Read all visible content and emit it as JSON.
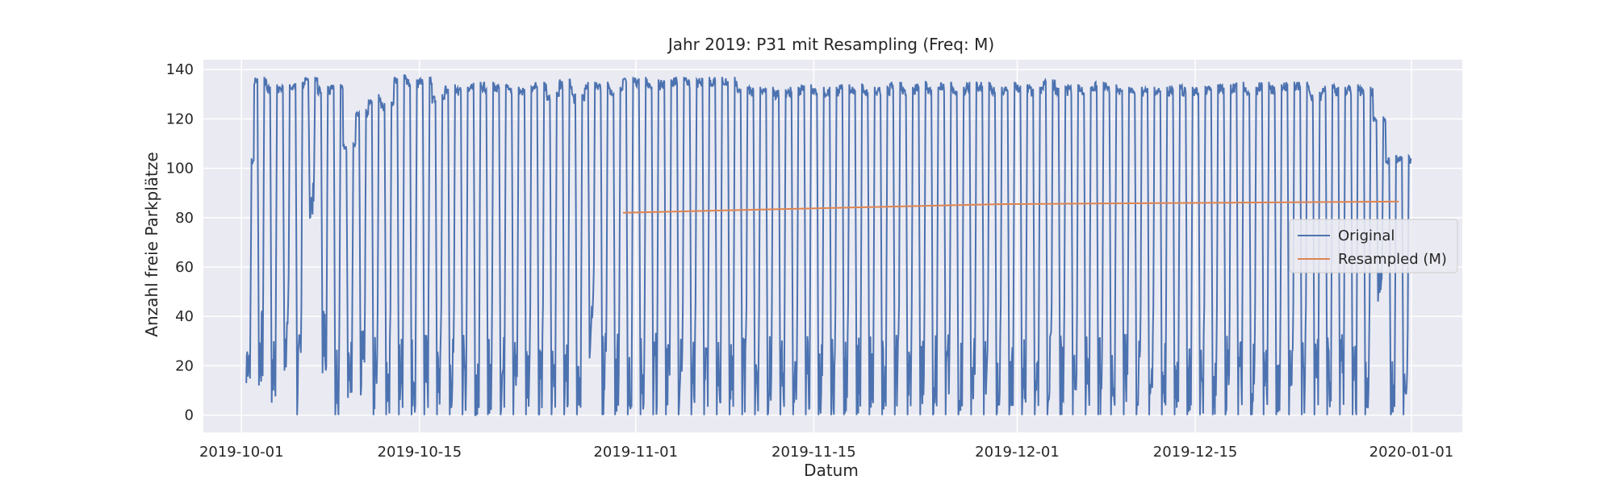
{
  "chart_data": {
    "type": "line",
    "title": "Jahr 2019: P31 mit Resampling (Freq: M)",
    "xlabel": "Datum",
    "ylabel": "Anzahl freie Parkplätze",
    "xlim": [
      "2019-09-28",
      "2020-01-05"
    ],
    "ylim": [
      -7,
      144
    ],
    "x_ticks": [
      "2019-10-01",
      "2019-10-15",
      "2019-11-01",
      "2019-11-15",
      "2019-12-01",
      "2019-12-15",
      "2020-01-01"
    ],
    "y_ticks": [
      0,
      20,
      40,
      60,
      80,
      100,
      120,
      140
    ],
    "grid": true,
    "legend_position": "center-right",
    "series": [
      {
        "name": "Original",
        "color": "#4c72b0",
        "description_values": {
          "start": "2019-10-01T09:00",
          "end": "2019-12-31T23:00",
          "daily_min_approx": 0,
          "daily_max_approx": 137
        },
        "daily_max": [
          104,
          137,
          134,
          134,
          135,
          137,
          133,
          134,
          110,
          124,
          130,
          127,
          138,
          136,
          137,
          130,
          134,
          133,
          135,
          135,
          134,
          133,
          133,
          135,
          131,
          136,
          130,
          135,
          135,
          133,
          137,
          137,
          136,
          136,
          137,
          136,
          137,
          137,
          137,
          133,
          133,
          133,
          132,
          133,
          134,
          133,
          133,
          134,
          134,
          133,
          133,
          135,
          133,
          135,
          133,
          135,
          133,
          135,
          135,
          133,
          135,
          134,
          133,
          136,
          133,
          134,
          133,
          135,
          134,
          133,
          133,
          133,
          133,
          134,
          133,
          133,
          134,
          134,
          135,
          133,
          135,
          134,
          135,
          135,
          131,
          134,
          133,
          134,
          133,
          121,
          105
        ],
        "daily_min": [
          13,
          12,
          5,
          18,
          0,
          80,
          17,
          0,
          7,
          8,
          0,
          0,
          0,
          0,
          0,
          0,
          0,
          0,
          0,
          0,
          0,
          0,
          0,
          0,
          0,
          0,
          0,
          23,
          0,
          0,
          0,
          0,
          0,
          0,
          0,
          0,
          0,
          0,
          0,
          0,
          0,
          0,
          0,
          0,
          0,
          0,
          0,
          0,
          0,
          0,
          0,
          0,
          0,
          0,
          0,
          0,
          0,
          0,
          0,
          0,
          0,
          0,
          0,
          0,
          0,
          0,
          0,
          0,
          0,
          0,
          0,
          0,
          0,
          0,
          0,
          0,
          0,
          0,
          0,
          0,
          0,
          0,
          0,
          0,
          0,
          0,
          0,
          0,
          0,
          46,
          0
        ]
      },
      {
        "name": "Resampled (M)",
        "color": "#dd8452",
        "x": [
          "2019-10-31",
          "2019-11-30",
          "2019-12-31"
        ],
        "values": [
          82,
          85.5,
          86.5
        ]
      }
    ]
  }
}
